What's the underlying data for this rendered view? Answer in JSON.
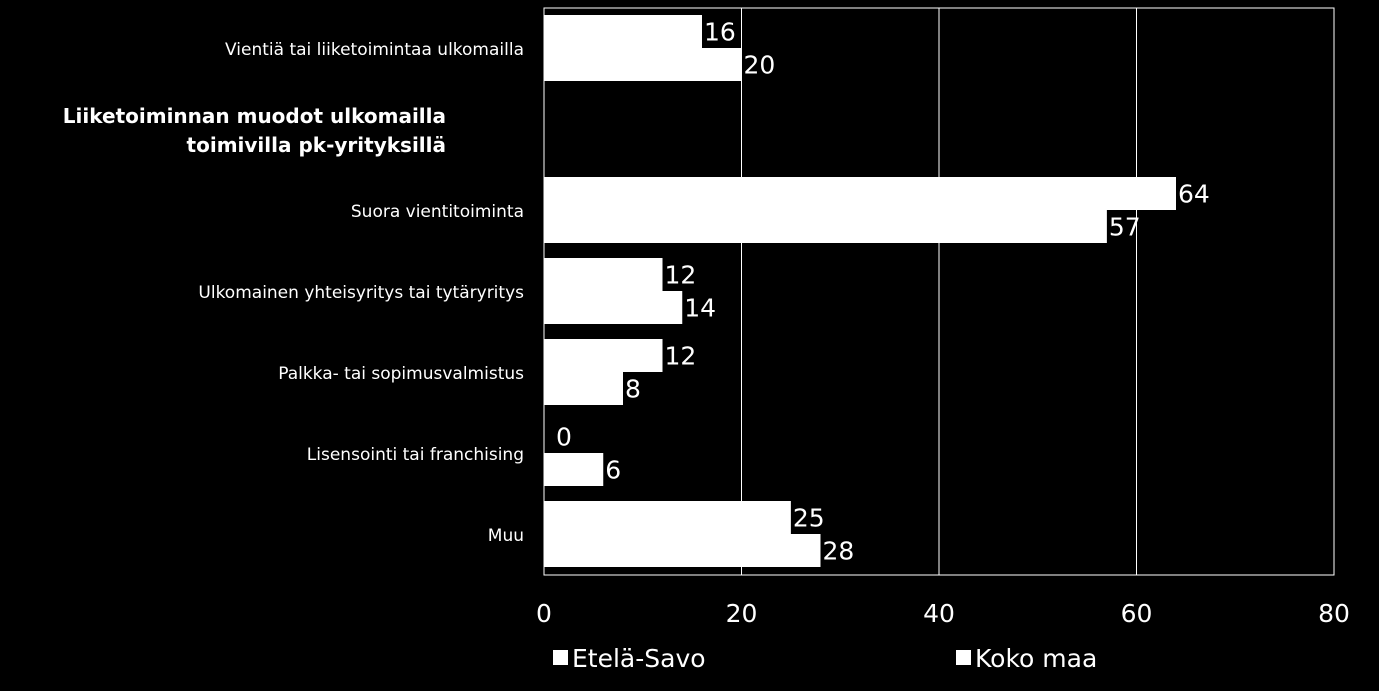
{
  "chart_data": {
    "type": "bar",
    "orientation": "horizontal",
    "categories": [
      "Vientiä tai liiketoimintaa ulkomailla",
      "",
      "Suora vientitoiminta",
      "Ulkomainen yhteisyritys tai tytäryritys",
      "Palkka- tai sopimusvalmistus",
      "Lisensointi tai franchising",
      "Muu"
    ],
    "section_heading": [
      "Liiketoiminnan muodot ulkomailla",
      "toimivilla pk-yrityksillä"
    ],
    "series": [
      {
        "name": "Etelä-Savo",
        "values": [
          16,
          null,
          64,
          12,
          12,
          0,
          25
        ]
      },
      {
        "name": "Koko maa",
        "values": [
          20,
          null,
          57,
          14,
          8,
          6,
          28
        ]
      }
    ],
    "xlim": [
      0,
      80
    ],
    "xticks": [
      0,
      20,
      40,
      60,
      80
    ],
    "grid": true,
    "legend_position": "bottom",
    "colors": {
      "background": "#000000",
      "bars": "#ffffff",
      "text": "#ffffff",
      "gridlines": "#ffffff"
    }
  }
}
